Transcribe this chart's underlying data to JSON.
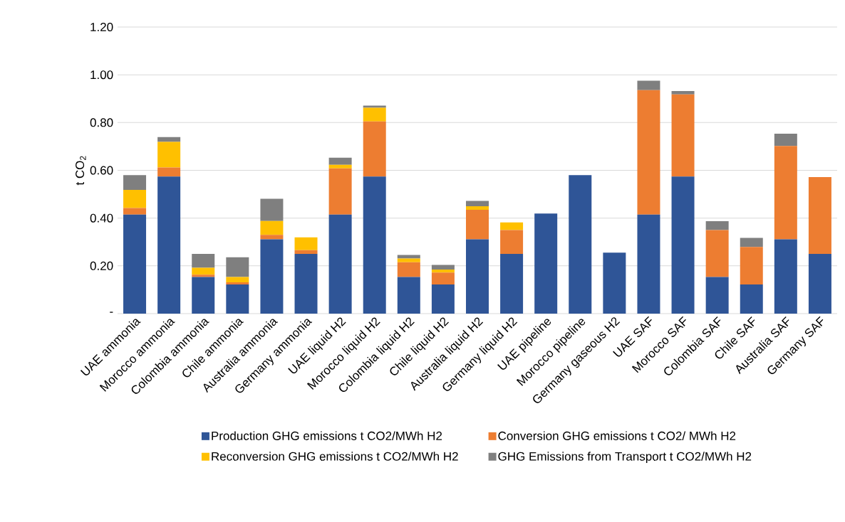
{
  "chart_data": {
    "type": "bar",
    "stacked": true,
    "ylabel": "t CO$_{2}$",
    "categories": [
      "UAE ammonia",
      "Morocco ammonia",
      "Colombia ammonia",
      "Chile ammonia",
      "Australia ammonia",
      "Germany ammonia",
      "UAE liquid H2",
      "Morocco liquid H2",
      "Colombia liquid H2",
      "Chile liquid H2",
      "Australia liquid H2",
      "Germany liquid H2",
      "UAE pipeline",
      "Morocco pipeline",
      "Germany gaseous H2",
      "UAE SAF",
      "Morocco SAF",
      "Colombia SAF",
      "Chile SAF",
      "Australia SAF",
      "Germany SAF"
    ],
    "series": [
      {
        "name": "Production GHG emissions t CO2/MWh H2",
        "color": "#2f5597",
        "values": [
          0.415,
          0.574,
          0.153,
          0.122,
          0.311,
          0.25,
          0.415,
          0.574,
          0.153,
          0.122,
          0.311,
          0.25,
          0.419,
          0.58,
          0.255,
          0.415,
          0.574,
          0.153,
          0.122,
          0.311,
          0.25
        ]
      },
      {
        "name": "Conversion GHG emissions t CO2/ MWh H2",
        "color": "#ed7d31",
        "values": [
          0.027,
          0.038,
          0.01,
          0.009,
          0.019,
          0.016,
          0.193,
          0.231,
          0.062,
          0.05,
          0.124,
          0.1,
          0,
          0,
          0,
          0.521,
          0.344,
          0.197,
          0.157,
          0.391,
          0.322
        ]
      },
      {
        "name": "Reconversion GHG emissions t CO2/MWh H2",
        "color": "#ffc000",
        "values": [
          0.076,
          0.107,
          0.029,
          0.022,
          0.058,
          0.053,
          0.015,
          0.057,
          0.016,
          0.013,
          0.015,
          0.032,
          0,
          0,
          0,
          0,
          0,
          0,
          0,
          0,
          0
        ]
      },
      {
        "name": "GHG Emissions from Transport t CO2/MWh H2",
        "color": "#7f7f7f",
        "values": [
          0.062,
          0.02,
          0.058,
          0.083,
          0.093,
          0,
          0.03,
          0.009,
          0.015,
          0.019,
          0.022,
          0,
          0,
          0,
          0,
          0.039,
          0.014,
          0.037,
          0.038,
          0.051,
          0
        ]
      }
    ],
    "ylim": [
      0,
      1.2
    ],
    "yticks": [
      {
        "value": 0,
        "label": "-"
      },
      {
        "value": 0.2,
        "label": "0.20"
      },
      {
        "value": 0.4,
        "label": "0.40"
      },
      {
        "value": 0.6,
        "label": "0.60"
      },
      {
        "value": 0.8,
        "label": "0.80"
      },
      {
        "value": 1.0,
        "label": "1.00"
      },
      {
        "value": 1.2,
        "label": "1.20"
      }
    ],
    "grid": "y",
    "legend": "bottom"
  }
}
